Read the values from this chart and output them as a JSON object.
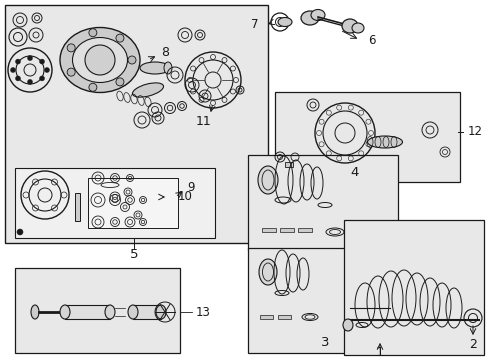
{
  "bg_color": "#ffffff",
  "fig_width": 4.89,
  "fig_height": 3.6,
  "dpi": 100,
  "line_color": "#1a1a1a",
  "text_color": "#1a1a1a",
  "fill_light": "#e8e8e8",
  "fill_mid": "#cccccc",
  "fill_dark": "#999999",
  "font_size": 8.5
}
